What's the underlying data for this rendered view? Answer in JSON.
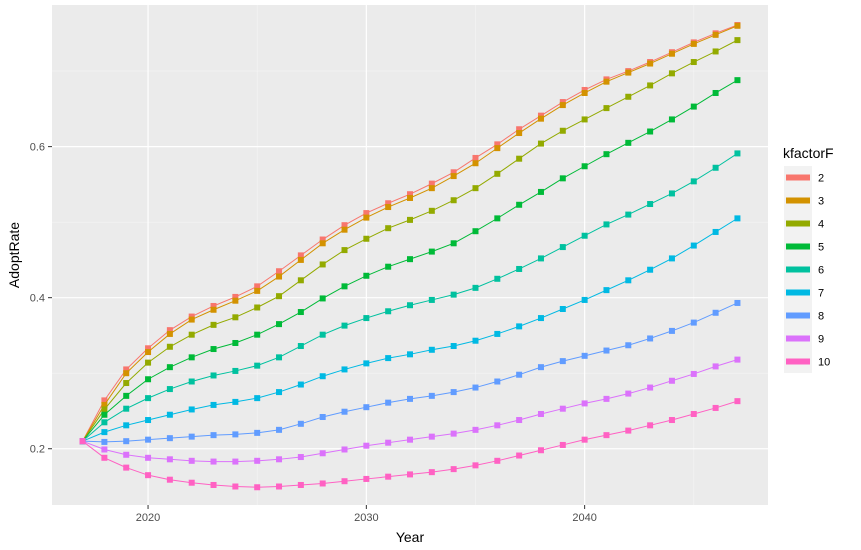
{
  "chart_data": {
    "type": "line",
    "xlabel": "Year",
    "ylabel": "AdoptRate",
    "legend_title": "kfactorF",
    "legend_position": "right",
    "grid": true,
    "xlim": [
      2015.6,
      2048.4
    ],
    "ylim": [
      0.1255,
      0.7875
    ],
    "xticks": [
      2020,
      2030,
      2040
    ],
    "xtick_labels": [
      "2020",
      "2030",
      "2040"
    ],
    "yticks": [
      0.2,
      0.4,
      0.6
    ],
    "ytick_labels": [
      "0.2",
      "0.4",
      "0.6"
    ],
    "x": [
      2017,
      2018,
      2019,
      2020,
      2021,
      2022,
      2023,
      2024,
      2025,
      2026,
      2027,
      2028,
      2029,
      2030,
      2031,
      2032,
      2033,
      2034,
      2035,
      2036,
      2037,
      2038,
      2039,
      2040,
      2041,
      2042,
      2043,
      2044,
      2045,
      2046,
      2047
    ],
    "series": [
      {
        "name": "2",
        "color": "#F8766D",
        "values": [
          0.21,
          0.264,
          0.305,
          0.333,
          0.357,
          0.375,
          0.389,
          0.401,
          0.415,
          0.435,
          0.456,
          0.477,
          0.496,
          0.512,
          0.525,
          0.537,
          0.551,
          0.566,
          0.585,
          0.603,
          0.623,
          0.641,
          0.659,
          0.675,
          0.689,
          0.7,
          0.712,
          0.725,
          0.738,
          0.75,
          0.761
        ]
      },
      {
        "name": "3",
        "color": "#D39200",
        "values": [
          0.21,
          0.258,
          0.3,
          0.328,
          0.352,
          0.371,
          0.384,
          0.396,
          0.409,
          0.428,
          0.45,
          0.472,
          0.49,
          0.506,
          0.52,
          0.532,
          0.545,
          0.561,
          0.578,
          0.598,
          0.618,
          0.637,
          0.655,
          0.671,
          0.686,
          0.698,
          0.71,
          0.723,
          0.736,
          0.748,
          0.76
        ]
      },
      {
        "name": "4",
        "color": "#93AA00",
        "values": [
          0.21,
          0.252,
          0.287,
          0.314,
          0.335,
          0.351,
          0.364,
          0.374,
          0.387,
          0.402,
          0.423,
          0.444,
          0.463,
          0.478,
          0.492,
          0.503,
          0.515,
          0.529,
          0.545,
          0.564,
          0.584,
          0.604,
          0.621,
          0.636,
          0.651,
          0.666,
          0.681,
          0.697,
          0.712,
          0.726,
          0.741
        ]
      },
      {
        "name": "5",
        "color": "#00BA38",
        "values": [
          0.21,
          0.245,
          0.27,
          0.292,
          0.308,
          0.321,
          0.332,
          0.34,
          0.351,
          0.365,
          0.381,
          0.399,
          0.415,
          0.429,
          0.441,
          0.451,
          0.461,
          0.472,
          0.488,
          0.505,
          0.523,
          0.54,
          0.558,
          0.574,
          0.59,
          0.605,
          0.62,
          0.636,
          0.653,
          0.671,
          0.688
        ]
      },
      {
        "name": "6",
        "color": "#00C19F",
        "values": [
          0.21,
          0.235,
          0.253,
          0.267,
          0.279,
          0.289,
          0.297,
          0.303,
          0.31,
          0.321,
          0.336,
          0.351,
          0.363,
          0.373,
          0.382,
          0.39,
          0.397,
          0.404,
          0.413,
          0.425,
          0.438,
          0.452,
          0.467,
          0.482,
          0.497,
          0.51,
          0.524,
          0.538,
          0.554,
          0.572,
          0.591
        ]
      },
      {
        "name": "7",
        "color": "#00B9E3",
        "values": [
          0.21,
          0.222,
          0.231,
          0.238,
          0.245,
          0.252,
          0.258,
          0.262,
          0.267,
          0.275,
          0.285,
          0.296,
          0.305,
          0.313,
          0.32,
          0.325,
          0.331,
          0.336,
          0.343,
          0.352,
          0.362,
          0.373,
          0.385,
          0.397,
          0.41,
          0.423,
          0.437,
          0.452,
          0.469,
          0.487,
          0.505
        ]
      },
      {
        "name": "8",
        "color": "#619CFF",
        "values": [
          0.21,
          0.209,
          0.21,
          0.212,
          0.214,
          0.216,
          0.218,
          0.219,
          0.221,
          0.225,
          0.233,
          0.242,
          0.249,
          0.255,
          0.261,
          0.266,
          0.27,
          0.275,
          0.281,
          0.289,
          0.298,
          0.308,
          0.316,
          0.323,
          0.33,
          0.337,
          0.346,
          0.356,
          0.367,
          0.38,
          0.393
        ]
      },
      {
        "name": "9",
        "color": "#DB72FB",
        "values": [
          0.21,
          0.199,
          0.192,
          0.188,
          0.186,
          0.184,
          0.183,
          0.183,
          0.184,
          0.186,
          0.189,
          0.194,
          0.199,
          0.204,
          0.208,
          0.212,
          0.216,
          0.22,
          0.225,
          0.231,
          0.238,
          0.246,
          0.253,
          0.26,
          0.266,
          0.273,
          0.281,
          0.29,
          0.299,
          0.309,
          0.318
        ]
      },
      {
        "name": "10",
        "color": "#FF61C3",
        "values": [
          0.21,
          0.188,
          0.175,
          0.165,
          0.159,
          0.155,
          0.152,
          0.15,
          0.149,
          0.15,
          0.152,
          0.154,
          0.157,
          0.16,
          0.163,
          0.166,
          0.169,
          0.173,
          0.178,
          0.184,
          0.191,
          0.198,
          0.205,
          0.212,
          0.218,
          0.224,
          0.231,
          0.238,
          0.246,
          0.254,
          0.263
        ]
      }
    ]
  }
}
